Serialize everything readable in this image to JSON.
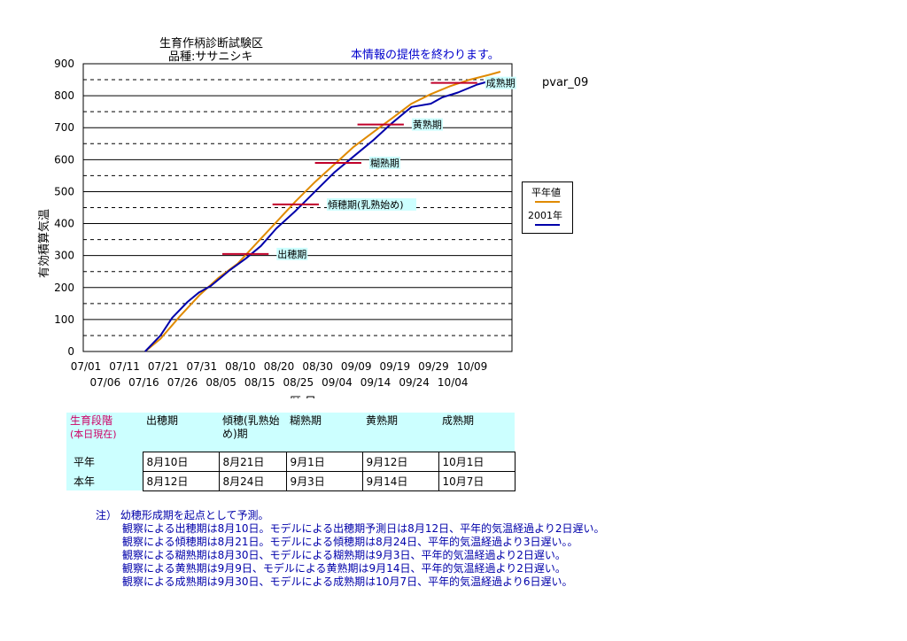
{
  "header": {
    "title_line1": "生育作柄診断試験区",
    "title_line2": "品種:ササニシキ",
    "notice": "本情報の提供を終わります。",
    "variable_label": "pvar_09"
  },
  "colors": {
    "normal_year": "#e08a00",
    "this_year": "#0000aa",
    "stage_marker": "#c0002a",
    "label_bg": "#ccffff",
    "table_header_bg": "#ccffff",
    "table_header_text": "#cc0066"
  },
  "chart_data": {
    "type": "line",
    "title": "生育作柄診断試験区",
    "subtitle": "品種:ササニシキ",
    "xlabel": "暦 日",
    "ylabel": "有効積算気温",
    "ylim": [
      0,
      900
    ],
    "yticks": [
      0,
      100,
      200,
      300,
      400,
      500,
      600,
      700,
      800,
      900
    ],
    "grid": "solid at 100s, dashed at 50s",
    "x_tick_labels_row1": [
      "07/01",
      "07/11",
      "07/21",
      "07/31",
      "08/10",
      "08/20",
      "08/30",
      "09/09",
      "09/19",
      "09/29",
      "10/09"
    ],
    "x_tick_labels_row2": [
      "07/06",
      "07/16",
      "07/26",
      "08/05",
      "08/15",
      "08/25",
      "09/04",
      "09/14",
      "09/24",
      "10/04"
    ],
    "legend": {
      "position": "right",
      "title": "平年値",
      "entries": [
        "平年値",
        "2001年"
      ]
    },
    "series": [
      {
        "name": "平年値",
        "color": "#e08a00",
        "points": [
          [
            16,
            0
          ],
          [
            20,
            40
          ],
          [
            25,
            110
          ],
          [
            30,
            175
          ],
          [
            35,
            230
          ],
          [
            40,
            275
          ],
          [
            45,
            340
          ],
          [
            50,
            405
          ],
          [
            55,
            470
          ],
          [
            60,
            530
          ],
          [
            65,
            585
          ],
          [
            70,
            640
          ],
          [
            75,
            685
          ],
          [
            80,
            730
          ],
          [
            85,
            775
          ],
          [
            90,
            805
          ],
          [
            95,
            830
          ],
          [
            100,
            850
          ],
          [
            105,
            865
          ],
          [
            108,
            875
          ]
        ]
      },
      {
        "name": "2001年",
        "color": "#0000aa",
        "points": [
          [
            16,
            0
          ],
          [
            20,
            50
          ],
          [
            23,
            105
          ],
          [
            27,
            155
          ],
          [
            30,
            185
          ],
          [
            33,
            205
          ],
          [
            38,
            255
          ],
          [
            42,
            290
          ],
          [
            46,
            330
          ],
          [
            50,
            385
          ],
          [
            55,
            440
          ],
          [
            60,
            500
          ],
          [
            65,
            560
          ],
          [
            70,
            610
          ],
          [
            75,
            660
          ],
          [
            80,
            715
          ],
          [
            85,
            765
          ],
          [
            90,
            775
          ],
          [
            93,
            795
          ],
          [
            97,
            810
          ],
          [
            102,
            835
          ],
          [
            105,
            845
          ],
          [
            108,
            850
          ]
        ]
      }
    ],
    "stage_markers": [
      {
        "label": "出穂期",
        "y": 305,
        "x_from": 36,
        "x_to": 48
      },
      {
        "label": "傾穂期(乳熟始め)",
        "y": 460,
        "x_from": 49,
        "x_to": 61
      },
      {
        "label": "糊熟期",
        "y": 590,
        "x_from": 60,
        "x_to": 72
      },
      {
        "label": "黄熟期",
        "y": 710,
        "x_from": 71,
        "x_to": 83
      },
      {
        "label": "成熟期",
        "y": 840,
        "x_from": 90,
        "x_to": 102
      }
    ]
  },
  "stage_table": {
    "header_label": "生育段階",
    "header_sub": "(本日現在)",
    "columns": [
      "出穂期",
      "傾穂(乳熟始め)期",
      "糊熟期",
      "黄熟期",
      "成熟期"
    ],
    "rows": [
      {
        "label": "平年",
        "values": [
          "8月10日",
          "8月21日",
          "9月1日",
          "9月12日",
          "10月1日"
        ]
      },
      {
        "label": "本年",
        "values": [
          "8月12日",
          "8月24日",
          "9月3日",
          "9月14日",
          "10月7日"
        ]
      }
    ]
  },
  "notes": {
    "heading": "注） 幼穂形成期を起点として予測。",
    "lines": [
      "観察による出穂期は8月10日。モデルによる出穂期予測日は8月12日、平年的気温経過より2日遅い。",
      "観察による傾穂期は8月21日。モデルによる傾穂期は8月24日、平年的気温経過より3日遅い。。",
      "観察による糊熟期は8月30日、モデルによる糊熟期は9月3日、平年的気温経過より2日遅い。",
      "観察による黄熟期は9月9日、モデルによる黄熟期は9月14日、平年的気温経過より2日遅い。",
      "観察による成熟期は9月30日、モデルによる成熟期は10月7日、平年的気温経過より6日遅い。"
    ]
  }
}
